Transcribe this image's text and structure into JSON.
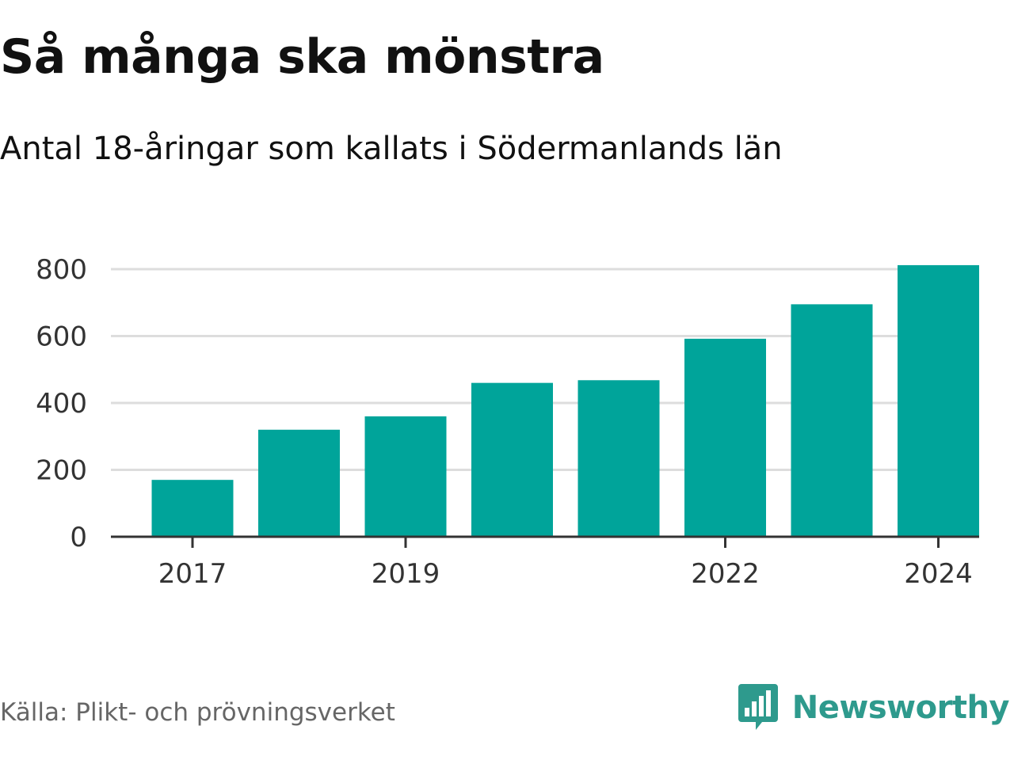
{
  "title": "Så många ska mönstra",
  "subtitle": "Antal 18-åringar som kallats i Södermanlands län",
  "source": "Källa: Plikt- och prövningsverket",
  "brand": {
    "name": "Newsworthy",
    "icon": "newsworthy-logo-icon"
  },
  "colors": {
    "bar": "#00a49a",
    "grid": "#dddddd",
    "axis": "#333333",
    "brand": "#2e9a8d",
    "title": "#111111",
    "source": "#666666"
  },
  "chart_data": {
    "type": "bar",
    "title": "Så många ska mönstra",
    "subtitle": "Antal 18-åringar som kallats i Södermanlands län",
    "xlabel": "",
    "ylabel": "",
    "categories": [
      "2017",
      "2018",
      "2019",
      "2020",
      "2021",
      "2022",
      "2023",
      "2024"
    ],
    "values": [
      170,
      320,
      360,
      460,
      468,
      592,
      695,
      812
    ],
    "x_tick_labels": [
      "2017",
      "2019",
      "2022",
      "2024"
    ],
    "yticks": [
      0,
      200,
      400,
      600,
      800
    ],
    "ylim": [
      0,
      820
    ],
    "grid": true,
    "legend": "none"
  }
}
